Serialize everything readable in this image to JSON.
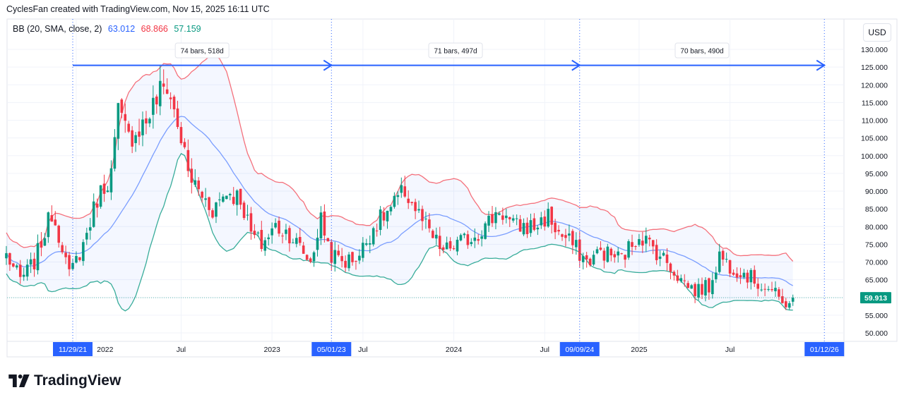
{
  "header": {
    "attribution": "CyclesFan created with TradingView.com, Nov 15, 2025 16:11 UTC"
  },
  "legend": {
    "indicator": "BB (20, SMA, close, 2)",
    "basis": "63.012",
    "upper": "68.866",
    "lower": "57.159"
  },
  "currency_label": "USD",
  "logo_text": "TradingView",
  "colors": {
    "up": "#089981",
    "down": "#f23645",
    "basis": "#2962ff",
    "upper": "#f23645",
    "lower": "#089981",
    "range": "#2962ff"
  },
  "chart_data": {
    "type": "candlestick",
    "timeframe": "weekly",
    "ylim": [
      48,
      134
    ],
    "yticks": [
      "130.000",
      "125.000",
      "120.000",
      "115.000",
      "110.000",
      "105.000",
      "100.000",
      "95.000",
      "90.000",
      "85.000",
      "80.000",
      "75.000",
      "70.000",
      "65.000",
      "55.000",
      "50.000"
    ],
    "ytick_values": [
      130,
      125,
      120,
      115,
      110,
      105,
      100,
      95,
      90,
      85,
      80,
      75,
      70,
      65,
      55,
      50
    ],
    "last_price": "59.913",
    "last_price_value": 59.913,
    "xticks": [
      {
        "label": "2022",
        "bar": 1
      },
      {
        "label": "Jul",
        "bar": 31
      },
      {
        "label": "2023",
        "bar": 57
      },
      {
        "label": "Jul",
        "bar": 83
      },
      {
        "label": "2024",
        "bar": 109
      },
      {
        "label": "Jul",
        "bar": 135
      },
      {
        "label": "2025",
        "bar": 162
      },
      {
        "label": "Jul",
        "bar": 188
      }
    ],
    "date_markers": [
      {
        "label": "11/29/21",
        "bar": 0
      },
      {
        "label": "05/01/23",
        "bar": 74
      },
      {
        "label": "09/09/24",
        "bar": 145
      },
      {
        "label": "01/12/26",
        "bar": 215
      }
    ],
    "ranges": [
      {
        "label": "74 bars, 518d",
        "from_bar": 0,
        "to_bar": 74,
        "price": 125.5
      },
      {
        "label": "71 bars, 497d",
        "from_bar": 74,
        "to_bar": 145,
        "price": 125.5
      },
      {
        "label": "70 bars, 490d",
        "from_bar": 145,
        "to_bar": 215,
        "price": 125.5
      }
    ],
    "close_anchors": [
      [
        -19,
        72
      ],
      [
        -15,
        65
      ],
      [
        -11,
        70
      ],
      [
        -6,
        84
      ],
      [
        -3,
        75
      ],
      [
        -1,
        66
      ],
      [
        3,
        75
      ],
      [
        7,
        88
      ],
      [
        11,
        95
      ],
      [
        13,
        112
      ],
      [
        16,
        105
      ],
      [
        21,
        110
      ],
      [
        25,
        118
      ],
      [
        27,
        120
      ],
      [
        31,
        105
      ],
      [
        33,
        95
      ],
      [
        36,
        90
      ],
      [
        40,
        85
      ],
      [
        44,
        90
      ],
      [
        48,
        88
      ],
      [
        51,
        78
      ],
      [
        54,
        75
      ],
      [
        58,
        80
      ],
      [
        62,
        78
      ],
      [
        68,
        70
      ],
      [
        71,
        82
      ],
      [
        74,
        72
      ],
      [
        78,
        70
      ],
      [
        82,
        72
      ],
      [
        86,
        80
      ],
      [
        91,
        85
      ],
      [
        95,
        90
      ],
      [
        98,
        85
      ],
      [
        102,
        78
      ],
      [
        106,
        73
      ],
      [
        110,
        75
      ],
      [
        114,
        77
      ],
      [
        118,
        80
      ],
      [
        122,
        85
      ],
      [
        126,
        80
      ],
      [
        132,
        80
      ],
      [
        136,
        83
      ],
      [
        139,
        78
      ],
      [
        143,
        75
      ],
      [
        147,
        70
      ],
      [
        151,
        73
      ],
      [
        157,
        71
      ],
      [
        162,
        78
      ],
      [
        166,
        74
      ],
      [
        170,
        70
      ],
      [
        174,
        65
      ],
      [
        178,
        62
      ],
      [
        182,
        63
      ],
      [
        185,
        72
      ],
      [
        188,
        69
      ],
      [
        192,
        67
      ],
      [
        196,
        64
      ],
      [
        200,
        62
      ],
      [
        203,
        58
      ],
      [
        206,
        59.9
      ]
    ],
    "bollinger": {
      "length": 20,
      "mult": 2,
      "last_basis": 63.012,
      "last_upper": 68.866,
      "last_lower": 57.159
    }
  }
}
